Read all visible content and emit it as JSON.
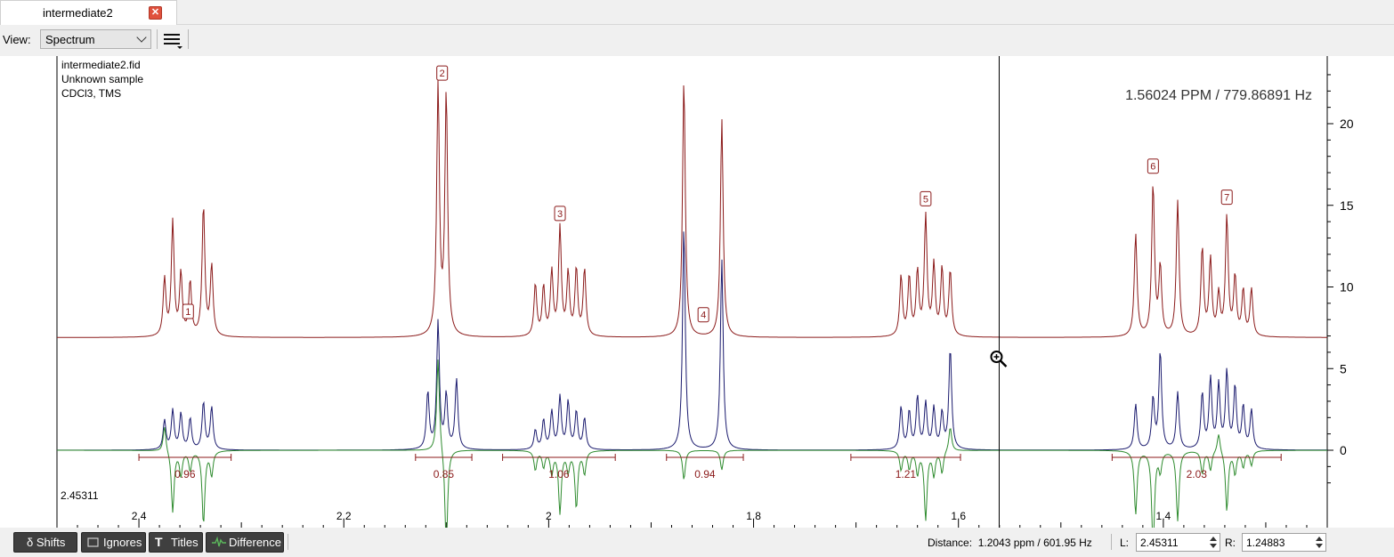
{
  "tab": {
    "label": "intermediate2",
    "close_icon": "close-icon"
  },
  "view": {
    "label": "View:",
    "selected": "Spectrum",
    "menu_icon": "hamburger-menu-icon"
  },
  "spectrum": {
    "info_lines": [
      "intermediate2.fid",
      "Unknown sample",
      "CDCl3, TMS"
    ],
    "cursor_readout": "1.56024 PPM / 779.86891 Hz",
    "left_value": "2.45311",
    "cursor_ppm": 1.56024,
    "x_range": [
      2.48,
      1.24
    ],
    "x_ticks": [
      "2.4",
      "2.2",
      "2",
      "1.8",
      "1.6",
      "1.4"
    ],
    "y_range": [
      -3,
      24
    ],
    "y_ticks": [
      "20",
      "15",
      "10",
      "5",
      "0"
    ],
    "colors": {
      "calc": "#8b1a1a",
      "exp": "#1a1a6e",
      "diff": "#2e8b2e",
      "integral": "#8b1a1a"
    },
    "calc_baseline": 6.9,
    "calc_peaks": [
      [
        2.375,
        3.5
      ],
      [
        2.367,
        7.0
      ],
      [
        2.359,
        3.8
      ],
      [
        2.35,
        3.3
      ],
      [
        2.337,
        8.0
      ],
      [
        2.329,
        4.3
      ],
      [
        2.108,
        15.3
      ],
      [
        2.1,
        14.8
      ],
      [
        2.013,
        3.2
      ],
      [
        2.005,
        3.0
      ],
      [
        1.997,
        3.9
      ],
      [
        1.989,
        6.6
      ],
      [
        1.981,
        3.8
      ],
      [
        1.973,
        4.1
      ],
      [
        1.965,
        4.1
      ],
      [
        1.868,
        15.8
      ],
      [
        1.831,
        13.4
      ],
      [
        1.656,
        3.7
      ],
      [
        1.648,
        3.6
      ],
      [
        1.64,
        3.9
      ],
      [
        1.632,
        7.3
      ],
      [
        1.624,
        4.3
      ],
      [
        1.616,
        4.1
      ],
      [
        1.608,
        4.0
      ],
      [
        1.427,
        6.3
      ],
      [
        1.41,
        9.3
      ],
      [
        1.403,
        4.2
      ],
      [
        1.386,
        8.3
      ],
      [
        1.362,
        5.4
      ],
      [
        1.354,
        4.7
      ],
      [
        1.346,
        2.5
      ],
      [
        1.338,
        7.3
      ],
      [
        1.33,
        3.6
      ],
      [
        1.322,
        2.8
      ],
      [
        1.314,
        2.9
      ]
    ],
    "exp_peaks": [
      [
        2.375,
        1.8
      ],
      [
        2.367,
        2.4
      ],
      [
        2.359,
        2.2
      ],
      [
        2.35,
        1.9
      ],
      [
        2.337,
        2.9
      ],
      [
        2.329,
        2.6
      ],
      [
        2.118,
        3.5
      ],
      [
        2.108,
        7.8
      ],
      [
        2.1,
        3.3
      ],
      [
        2.09,
        4.3
      ],
      [
        2.013,
        1.2
      ],
      [
        2.005,
        1.8
      ],
      [
        1.997,
        2.3
      ],
      [
        1.989,
        3.2
      ],
      [
        1.981,
        2.9
      ],
      [
        1.973,
        2.3
      ],
      [
        1.965,
        1.9
      ],
      [
        1.868,
        13.7
      ],
      [
        1.831,
        11.7
      ],
      [
        1.656,
        2.6
      ],
      [
        1.648,
        2.3
      ],
      [
        1.64,
        3.2
      ],
      [
        1.632,
        2.8
      ],
      [
        1.624,
        2.5
      ],
      [
        1.616,
        2.2
      ],
      [
        1.608,
        6.2
      ],
      [
        1.427,
        2.8
      ],
      [
        1.41,
        3.1
      ],
      [
        1.403,
        6.0
      ],
      [
        1.386,
        3.5
      ],
      [
        1.362,
        3.4
      ],
      [
        1.354,
        4.3
      ],
      [
        1.346,
        3.9
      ],
      [
        1.338,
        4.7
      ],
      [
        1.33,
        3.8
      ],
      [
        1.322,
        2.6
      ],
      [
        1.314,
        2.4
      ]
    ],
    "diff_peaks": [
      [
        2.375,
        1.6
      ],
      [
        2.367,
        -3.8
      ],
      [
        2.359,
        -1.5
      ],
      [
        2.35,
        -1.2
      ],
      [
        2.337,
        -4.5
      ],
      [
        2.329,
        -1.5
      ],
      [
        2.108,
        5.8
      ],
      [
        2.1,
        -6.2
      ],
      [
        2.013,
        -1.2
      ],
      [
        2.005,
        -1.0
      ],
      [
        1.997,
        -1.4
      ],
      [
        1.989,
        -3.8
      ],
      [
        1.981,
        -1.2
      ],
      [
        1.973,
        -3.5
      ],
      [
        1.965,
        -1.4
      ],
      [
        1.868,
        -1.8
      ],
      [
        1.831,
        -1.2
      ],
      [
        1.656,
        -1.2
      ],
      [
        1.648,
        -1.1
      ],
      [
        1.64,
        -1.4
      ],
      [
        1.632,
        -4.2
      ],
      [
        1.624,
        -1.5
      ],
      [
        1.616,
        -1.4
      ],
      [
        1.608,
        1.5
      ],
      [
        1.427,
        -3.9
      ],
      [
        1.41,
        -6.0
      ],
      [
        1.403,
        -1.2
      ],
      [
        1.386,
        -4.3
      ],
      [
        1.362,
        -1.4
      ],
      [
        1.354,
        -1.2
      ],
      [
        1.346,
        1.2
      ],
      [
        1.338,
        -3.7
      ],
      [
        1.33,
        -1.4
      ],
      [
        1.322,
        -1.0
      ],
      [
        1.314,
        -0.9
      ]
    ],
    "multiplets": [
      {
        "label": "1",
        "ppm": 2.352,
        "y": 8.5
      },
      {
        "label": "2",
        "ppm": 2.104,
        "y": 23.1
      },
      {
        "label": "3",
        "ppm": 1.989,
        "y": 14.5
      },
      {
        "label": "4",
        "ppm": 1.849,
        "y": 8.3
      },
      {
        "label": "5",
        "ppm": 1.632,
        "y": 15.4
      },
      {
        "label": "6",
        "ppm": 1.41,
        "y": 17.4
      },
      {
        "label": "7",
        "ppm": 1.338,
        "y": 15.5
      }
    ],
    "integrals": [
      {
        "from": 2.4,
        "to": 2.31,
        "label": "0.96"
      },
      {
        "from": 2.13,
        "to": 2.075,
        "label": "0.85"
      },
      {
        "from": 2.045,
        "to": 1.935,
        "label": "1.06"
      },
      {
        "from": 1.885,
        "to": 1.81,
        "label": "0.94"
      },
      {
        "from": 1.705,
        "to": 1.598,
        "label": "1.21"
      },
      {
        "from": 1.45,
        "to": 1.285,
        "label": "2.03"
      }
    ]
  },
  "bottom": {
    "buttons": [
      {
        "name": "shifts",
        "icon": "delta-icon",
        "label": "δ Shifts"
      },
      {
        "name": "ignores",
        "icon": "checkbox-icon",
        "label": "Ignores"
      },
      {
        "name": "titles",
        "icon": "title-t-icon",
        "label": "Titles"
      },
      {
        "name": "difference",
        "icon": "difference-wave-icon",
        "label": "Difference"
      }
    ],
    "distance_label": "Distance:",
    "distance_value": "1.2043 ppm / 601.95 Hz",
    "left_label": "L:",
    "left_value": "2.45311",
    "right_label": "R:",
    "right_value": "1.24883"
  }
}
